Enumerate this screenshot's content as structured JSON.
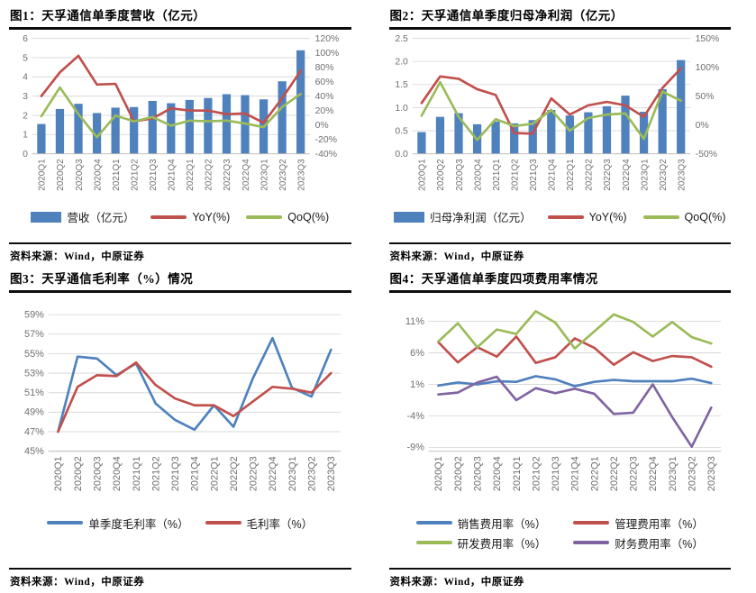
{
  "colors": {
    "bar_blue": "#4F81BD",
    "line_red": "#C0504D",
    "line_green": "#9BBB59",
    "line_purple": "#8064A2",
    "gridline": "#D9D9D9",
    "axis_line": "#BFBFBF",
    "axis_text": "#6F6F6F",
    "rule_black": "#0D0D0D"
  },
  "chart_data": [
    {
      "id": "quarterly-revenue",
      "type": "bar+line",
      "title": "图1：天孚通信单季度营收（亿元）",
      "source": "资料来源：Wind，中原证券",
      "categories": [
        "2020Q1",
        "2020Q2",
        "2020Q3",
        "2020Q4",
        "2021Q1",
        "2021Q2",
        "2021Q3",
        "2021Q4",
        "2022Q1",
        "2022Q2",
        "2022Q3",
        "2022Q4",
        "2023Q1",
        "2023Q2",
        "2023Q3"
      ],
      "left_axis": {
        "min": 0,
        "max": 6,
        "step": 1,
        "decimals": 0,
        "suffix": ""
      },
      "right_axis": {
        "min": -40,
        "max": 120,
        "step": 20,
        "suffix": "%"
      },
      "bar_series": {
        "name": "营收（亿元）",
        "color": "#4F81BD",
        "values": [
          1.55,
          2.33,
          2.6,
          2.12,
          2.4,
          2.43,
          2.75,
          2.63,
          2.8,
          2.9,
          3.1,
          3.05,
          2.83,
          3.77,
          5.38
        ]
      },
      "line_series": [
        {
          "name": "YoY(%)",
          "color": "#C0504D",
          "values": [
            40,
            73,
            96,
            56,
            57,
            5,
            9,
            23,
            20,
            20,
            15,
            16,
            3,
            37,
            75
          ]
        },
        {
          "name": "QoQ(%)",
          "color": "#9BBB59",
          "values": [
            12,
            52,
            15,
            -17,
            13,
            5,
            11,
            -1,
            6,
            5,
            6,
            2,
            -3,
            25,
            43
          ]
        }
      ],
      "legend_columns": 1
    },
    {
      "id": "quarterly-net-profit",
      "type": "bar+line",
      "title": "图2：天孚通信单季度归母净利润（亿元）",
      "source": "资料来源：Wind，中原证券",
      "categories": [
        "2020Q1",
        "2020Q2",
        "2020Q3",
        "2020Q4",
        "2021Q1",
        "2021Q2",
        "2021Q3",
        "2021Q4",
        "2022Q1",
        "2022Q2",
        "2022Q3",
        "2022Q4",
        "2023Q1",
        "2023Q2",
        "2023Q3"
      ],
      "left_axis": {
        "min": 0,
        "max": 2.5,
        "step": 0.5,
        "decimals": 1,
        "suffix": ""
      },
      "right_axis": {
        "min": -50,
        "max": 150,
        "step": 50,
        "suffix": "%"
      },
      "bar_series": {
        "name": "归母净利润（亿元）",
        "color": "#4F81BD",
        "values": [
          0.47,
          0.8,
          0.88,
          0.64,
          0.7,
          0.66,
          0.73,
          0.95,
          0.83,
          0.9,
          1.03,
          1.26,
          0.91,
          1.4,
          2.03
        ]
      },
      "line_series": [
        {
          "name": "YoY(%)",
          "color": "#C0504D",
          "values": [
            38,
            84,
            80,
            62,
            52,
            -14,
            -15,
            46,
            18,
            34,
            40,
            34,
            14,
            64,
            98
          ]
        },
        {
          "name": "QoQ(%)",
          "color": "#9BBB59",
          "values": [
            16,
            74,
            14,
            -26,
            10,
            -2,
            2,
            26,
            -10,
            12,
            18,
            20,
            -24,
            58,
            42
          ]
        }
      ],
      "legend_columns": 1
    },
    {
      "id": "gross-margin",
      "type": "line",
      "title": "图3：天孚通信毛利率（%）情况",
      "source": "资料来源：Wind，中原证券",
      "categories": [
        "2020Q1",
        "2020Q2",
        "2020Q3",
        "2020Q4",
        "2021Q1",
        "2021Q2",
        "2021Q3",
        "2021Q4",
        "2022Q1",
        "2022Q2",
        "2022Q3",
        "2022Q4",
        "2023Q1",
        "2023Q2",
        "2023Q3"
      ],
      "y_axis": {
        "min": 45,
        "max": 60,
        "ticks": [
          45,
          47,
          49,
          51,
          53,
          55,
          57,
          59
        ],
        "suffix": "%"
      },
      "line_series": [
        {
          "name": "单季度毛利率（%）",
          "color": "#4F81BD",
          "values": [
            47.0,
            54.7,
            54.5,
            52.8,
            54.0,
            49.9,
            48.2,
            47.2,
            49.7,
            47.5,
            52.5,
            56.6,
            51.5,
            50.6,
            55.4
          ]
        },
        {
          "name": "毛利率（%）",
          "color": "#C0504D",
          "values": [
            47.0,
            51.6,
            52.8,
            52.7,
            54.1,
            51.8,
            50.4,
            49.7,
            49.7,
            48.6,
            50.1,
            51.6,
            51.4,
            51.0,
            53.0
          ]
        }
      ],
      "legend_columns": 1
    },
    {
      "id": "expense-ratios",
      "type": "line",
      "title": "图4：天孚通信单季度四项费用率情况",
      "source": "资料来源：Wind，中原证券",
      "categories": [
        "2020Q1",
        "2020Q2",
        "2020Q3",
        "2020Q4",
        "2021Q1",
        "2021Q2",
        "2021Q3",
        "2021Q4",
        "2022Q1",
        "2022Q2",
        "2022Q3",
        "2022Q4",
        "2023Q1",
        "2023Q2",
        "2023Q3"
      ],
      "y_axis": {
        "min": -9.6,
        "max": 13.6,
        "ticks": [
          -9,
          -4,
          1,
          6,
          11
        ],
        "suffix": "%"
      },
      "line_series": [
        {
          "name": "销售费用率（%）",
          "color": "#4F81BD",
          "values": [
            0.8,
            1.3,
            1.0,
            1.5,
            1.4,
            2.3,
            1.8,
            0.7,
            1.4,
            1.7,
            1.5,
            1.5,
            1.5,
            1.9,
            1.2
          ]
        },
        {
          "name": "管理费用率（%）",
          "color": "#C0504D",
          "values": [
            7.7,
            4.5,
            6.9,
            5.4,
            8.6,
            4.4,
            5.3,
            8.3,
            6.8,
            4.1,
            6.1,
            4.7,
            5.5,
            5.3,
            3.8
          ]
        },
        {
          "name": "研发费用率（%）",
          "color": "#9BBB59",
          "values": [
            7.8,
            10.7,
            6.9,
            9.7,
            9.0,
            12.6,
            10.8,
            6.7,
            9.4,
            12.1,
            10.9,
            8.6,
            10.9,
            8.5,
            7.5
          ]
        },
        {
          "name": "财务费用率（%）",
          "color": "#8064A2",
          "values": [
            -0.6,
            -0.3,
            1.3,
            2.2,
            -1.5,
            0.4,
            -0.4,
            0.3,
            -0.5,
            -3.7,
            -3.5,
            1.0,
            -4.2,
            -8.9,
            -2.7
          ]
        }
      ],
      "legend_columns": 2
    }
  ]
}
